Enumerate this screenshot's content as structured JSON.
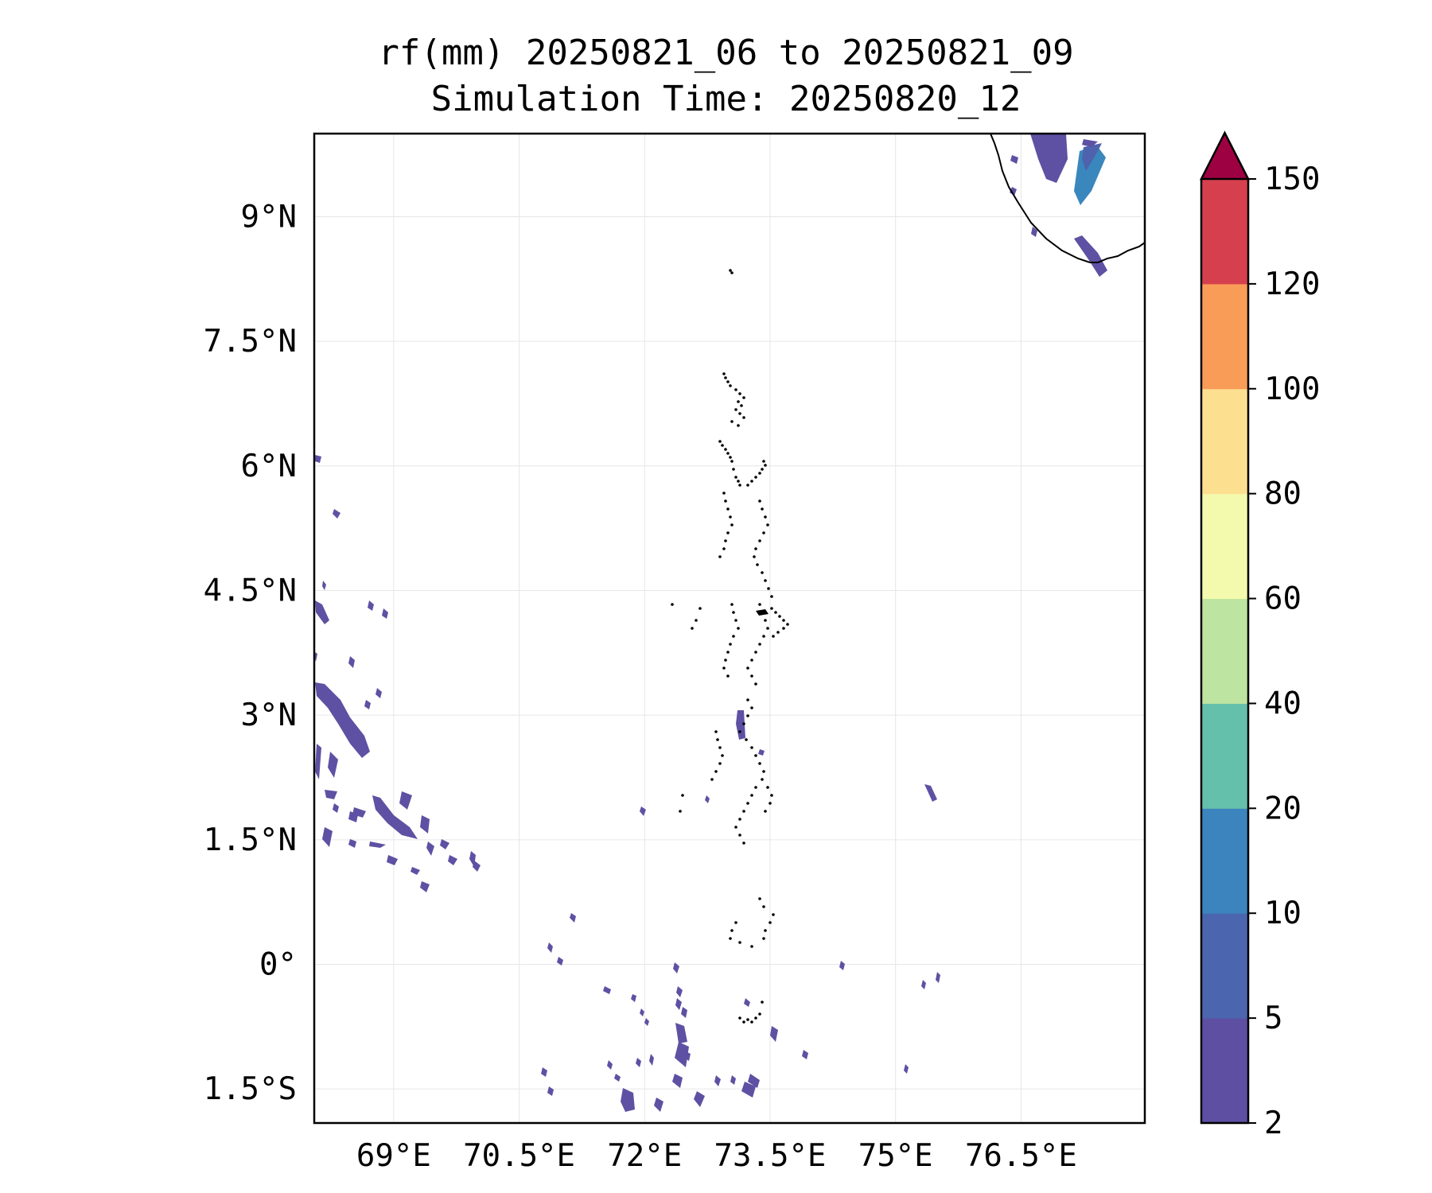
{
  "title": {
    "line1": "rf(mm) 20250821_06 to 20250821_09",
    "line2": "Simulation Time: 20250820_12"
  },
  "map": {
    "lon_range": [
      68.05,
      77.98
    ],
    "lat_range": [
      -1.91,
      10.0
    ],
    "lon_ticks": [
      {
        "value": 69.0,
        "label": "69°E"
      },
      {
        "value": 70.5,
        "label": "70.5°E"
      },
      {
        "value": 72.0,
        "label": "72°E"
      },
      {
        "value": 73.5,
        "label": "73.5°E"
      },
      {
        "value": 75.0,
        "label": "75°E"
      },
      {
        "value": 76.5,
        "label": "76.5°E"
      }
    ],
    "lat_ticks": [
      {
        "value": 9.0,
        "label": "9°N"
      },
      {
        "value": 7.5,
        "label": "7.5°N"
      },
      {
        "value": 6.0,
        "label": "6°N"
      },
      {
        "value": 4.5,
        "label": "4.5°N"
      },
      {
        "value": 3.0,
        "label": "3°N"
      },
      {
        "value": 1.5,
        "label": "1.5°N"
      },
      {
        "value": 0.0,
        "label": "0°"
      },
      {
        "value": -1.5,
        "label": "1.5°S"
      }
    ],
    "gridlines": true,
    "colors": {
      "rain_low": "#5e51a3",
      "rain_mid": "#4f62ad",
      "rain_high": "#3a87bd",
      "coast": "#000000",
      "grid": "#e6e6e6"
    }
  },
  "colorbar": {
    "ticks": [
      {
        "value": 2,
        "label": "2"
      },
      {
        "value": 5,
        "label": "5"
      },
      {
        "value": 10,
        "label": "10"
      },
      {
        "value": 20,
        "label": "20"
      },
      {
        "value": 40,
        "label": "40"
      },
      {
        "value": 60,
        "label": "60"
      },
      {
        "value": 80,
        "label": "80"
      },
      {
        "value": 100,
        "label": "100"
      },
      {
        "value": 120,
        "label": "120"
      },
      {
        "value": 150,
        "label": "150"
      }
    ],
    "colors": [
      "#5e4fa2",
      "#4b65ae",
      "#3b84bd",
      "#65c0ab",
      "#bde4a0",
      "#f3faad",
      "#fddf90",
      "#f99c58",
      "#d6404e"
    ],
    "extend_color": "#9e0142",
    "extend": "max"
  }
}
